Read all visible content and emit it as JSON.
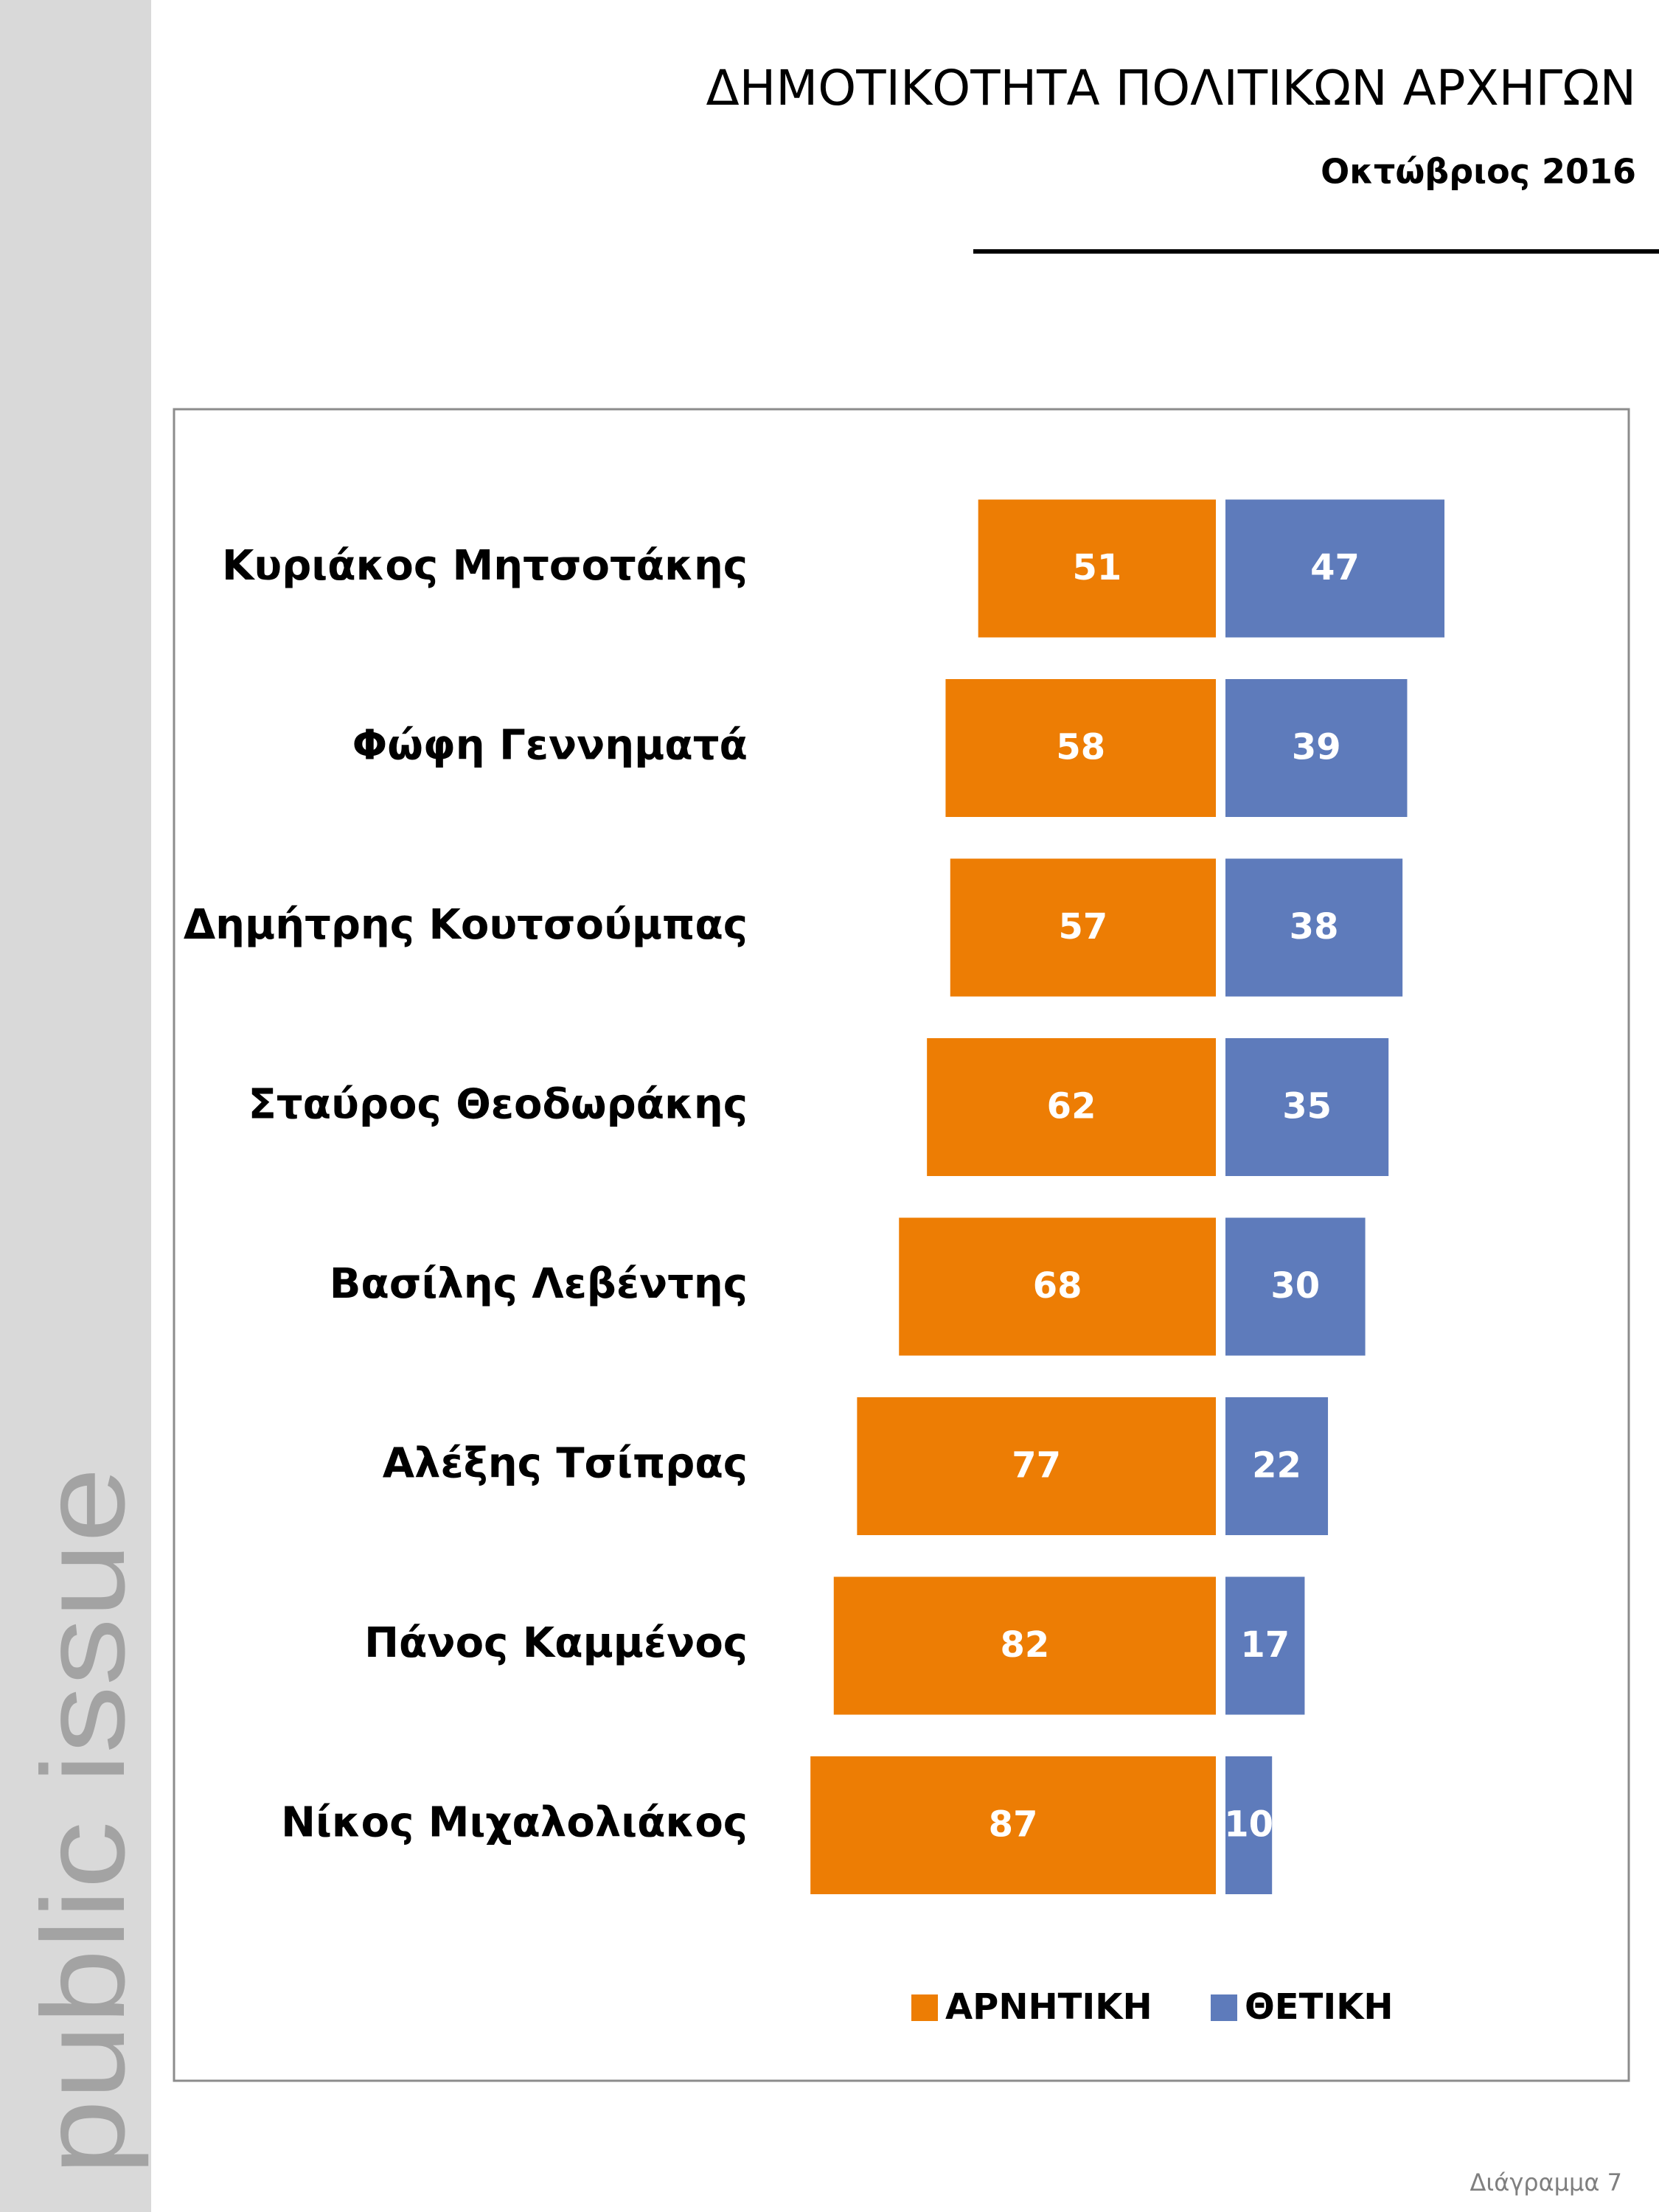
{
  "brand": "public issue",
  "footer": "Διάγραμμα 7",
  "chart_data": {
    "type": "diverging-bar",
    "title": "ΔΗΜΟΤΙΚΟΤΗΤΑ ΠΟΛΙΤΙΚΩΝ ΑΡΧΗΓΩΝ",
    "subtitle": "Οκτώβριος 2016",
    "categories": [
      "Κυριάκος Μητσοτάκης",
      "Φώφη Γεννηματά",
      "Δημήτρης Κουτσούμπας",
      "Σταύρος Θεοδωράκης",
      "Βασίλης Λεβέντης",
      "Αλέξης Τσίπρας",
      "Πάνος Καμμένος",
      "Νίκος Μιχαλολιάκος"
    ],
    "series": [
      {
        "name": "ΑΡΝΗΤΙΚΗ",
        "color": "#ed7d04",
        "values": [
          51,
          58,
          57,
          62,
          68,
          77,
          82,
          87
        ]
      },
      {
        "name": "ΘΕΤΙΚΗ",
        "color": "#5e7bbb",
        "values": [
          47,
          39,
          38,
          35,
          30,
          22,
          17,
          10
        ]
      }
    ]
  }
}
